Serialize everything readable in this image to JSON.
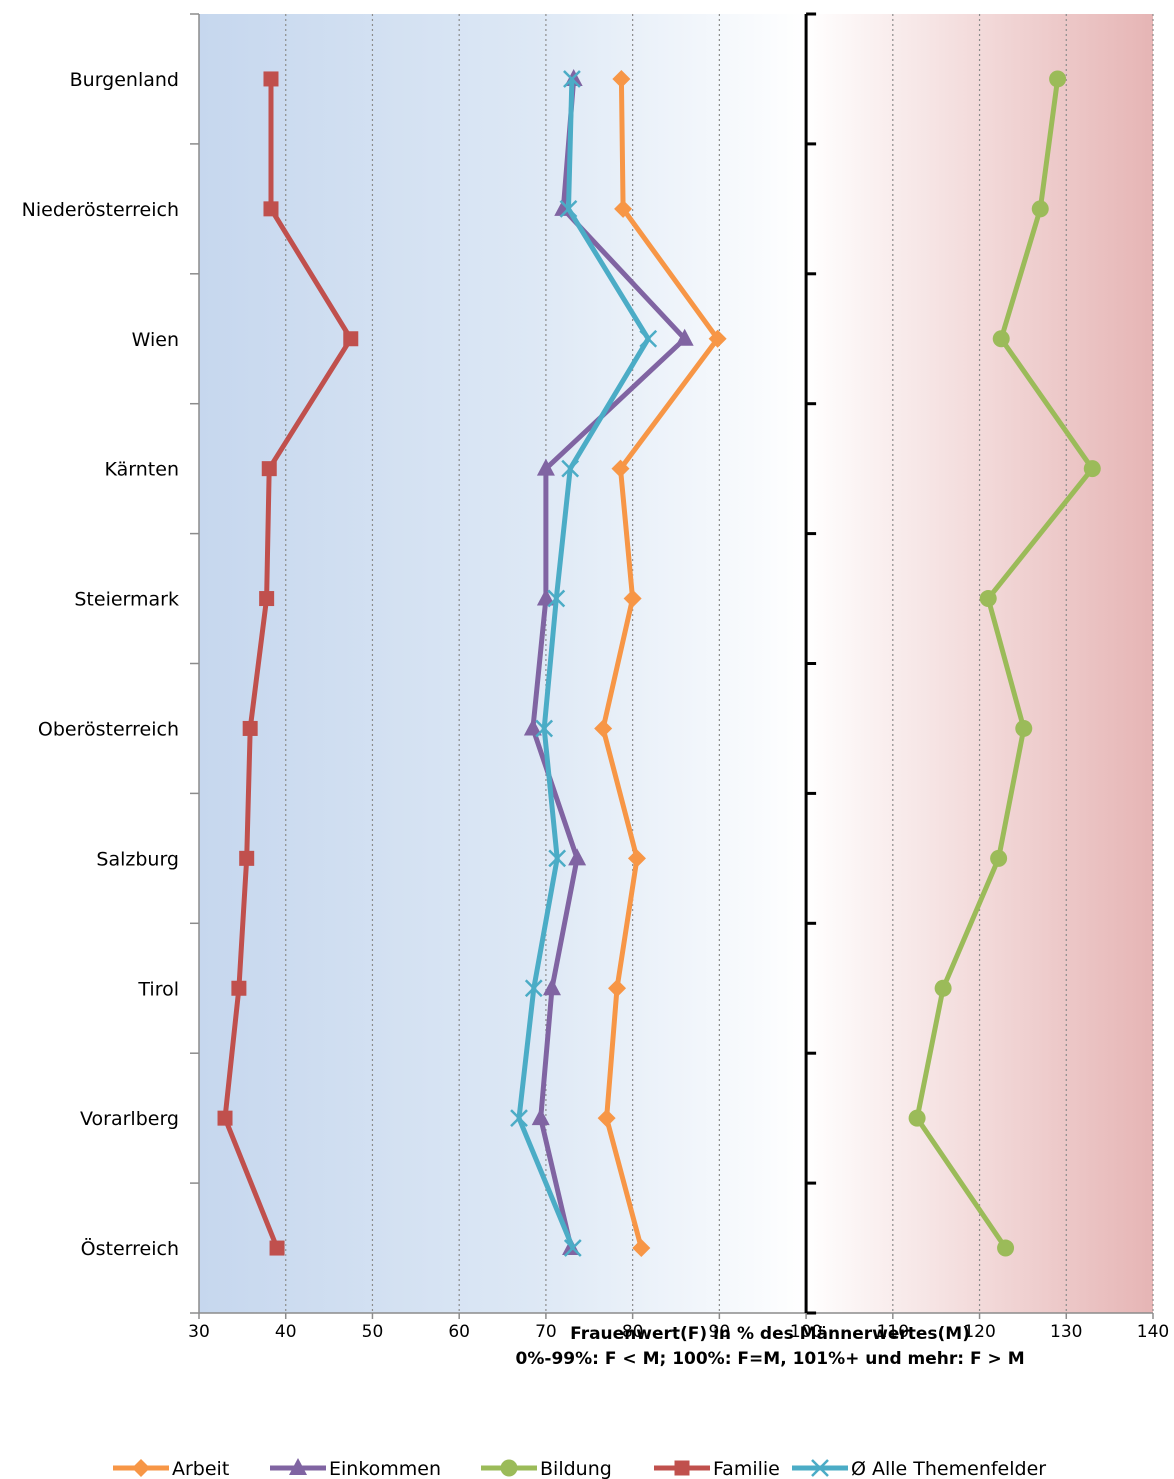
{
  "chart_data": {
    "type": "line",
    "orientation": "horizontal",
    "xlim": [
      30,
      140
    ],
    "xticks": [
      30,
      40,
      50,
      60,
      70,
      80,
      90,
      100,
      110,
      120,
      130,
      140
    ],
    "reference_value": 100,
    "xlabel_line1": "Frauenwert(F) in % des Männerwertes(M)",
    "xlabel_line2": "0%-99%: F < M; 100%: F=M, 101%+ und mehr: F > M",
    "categories": [
      "Burgenland",
      "Niederösterreich",
      "Wien",
      "Kärnten",
      "Steiermark",
      "Oberösterreich",
      "Salzburg",
      "Tirol",
      "Vorarlberg",
      "Österreich"
    ],
    "grid": true,
    "legend_position": "bottom",
    "series": [
      {
        "name": "Arbeit",
        "color": "#f79646",
        "marker": "diamond",
        "values": [
          78.7,
          78.9,
          89.8,
          78.6,
          80.0,
          76.6,
          80.5,
          78.2,
          77.0,
          81.0
        ]
      },
      {
        "name": "Einkommen",
        "color": "#8064a2",
        "marker": "triangle",
        "values": [
          73.2,
          72.0,
          86.0,
          70.0,
          70.0,
          68.5,
          73.6,
          70.7,
          69.4,
          72.9
        ]
      },
      {
        "name": "Bildung",
        "color": "#9bbb59",
        "marker": "circle",
        "values": [
          129.0,
          127.0,
          122.5,
          133.0,
          121.0,
          125.1,
          122.2,
          115.8,
          112.8,
          123.0
        ]
      },
      {
        "name": "Familie",
        "color": "#c0504d",
        "marker": "square",
        "values": [
          38.3,
          38.3,
          47.5,
          38.1,
          37.8,
          35.9,
          35.5,
          34.6,
          33.0,
          39.0
        ]
      },
      {
        "name": "Ø Alle Themenfelder",
        "color": "#4bacc6",
        "marker": "x",
        "values": [
          73.0,
          72.6,
          81.8,
          72.8,
          71.2,
          69.8,
          71.3,
          68.6,
          66.9,
          73.1
        ]
      }
    ]
  }
}
